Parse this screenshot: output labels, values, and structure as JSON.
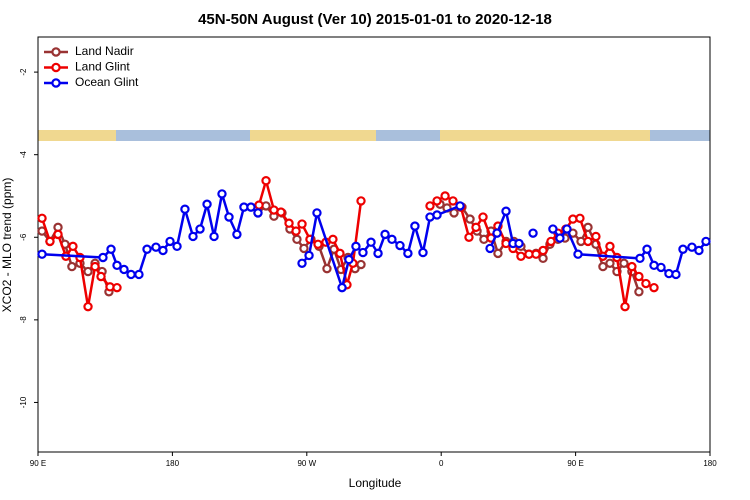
{
  "chart_data": {
    "type": "line",
    "title": "45N-50N August (Ver 10)   2015-01-01 to 2020-12-18",
    "x_label": "Longitude",
    "y_label": "XCO2 - MLO trend (ppm)",
    "xlim": [
      90,
      540
    ],
    "xticks": [
      {
        "value": 90,
        "label": "90 E"
      },
      {
        "value": 180,
        "label": "180"
      },
      {
        "value": 270,
        "label": "90 W"
      },
      {
        "value": 360,
        "label": "0"
      },
      {
        "value": 450,
        "label": "90 E"
      },
      {
        "value": 540,
        "label": "180"
      }
    ],
    "ylim": [
      -11.2,
      -1.15
    ],
    "yticks": [
      -2,
      -4,
      -6,
      -8,
      -10
    ],
    "legend": "top-left",
    "series": [
      {
        "name": "Land Nadir",
        "color": "#993333",
        "x": [
          92.7,
          98.0,
          103.4,
          108.1,
          112.7,
          118.1,
          123.5,
          128.2,
          132.9,
          137.5,
          null,
          237.3,
          242.7,
          248.0,
          253.4,
          258.7,
          263.4,
          268.1,
          272.8,
          278.2,
          283.5,
          288.2,
          292.9,
          297.6,
          302.3,
          306.3,
          null,
          359.2,
          363.9,
          368.6,
          373.9,
          379.3,
          384.0,
          388.6,
          393.4,
          398.0,
          403.4,
          408.7,
          413.4,
          418.8,
          423.5,
          428.2,
          432.8,
          438.2,
          442.9,
          448.2,
          453.6,
          458.3,
          463.6,
          468.3,
          473.0,
          477.7,
          482.4,
          487.7,
          492.4
        ],
        "values": [
          -5.85,
          -6.1,
          -5.76,
          -6.17,
          -6.71,
          -6.63,
          -6.83,
          -6.63,
          -6.83,
          -7.32,
          null,
          -5.41,
          -5.24,
          -5.49,
          -5.41,
          -5.8,
          -6.05,
          -6.27,
          -6.05,
          -6.22,
          -6.76,
          -6.29,
          -6.78,
          -6.49,
          -6.76,
          -6.66,
          null,
          -5.2,
          -5.29,
          -5.41,
          -5.27,
          -5.56,
          -5.85,
          -6.05,
          -5.85,
          -6.39,
          -6.1,
          -6.1,
          -6.22,
          -6.41,
          -6.39,
          -6.51,
          -6.17,
          -6.05,
          -6.02,
          -5.9,
          -6.1,
          -5.76,
          -6.17,
          -6.71,
          -6.63,
          -6.83,
          -6.63,
          -6.83,
          -7.32
        ]
      },
      {
        "name": "Land Glint",
        "color": "#ee0000",
        "x": [
          92.7,
          98.0,
          103.4,
          108.7,
          113.4,
          118.1,
          123.5,
          128.2,
          132.2,
          138.2,
          142.9,
          null,
          238.0,
          242.7,
          248.0,
          252.7,
          258.1,
          262.8,
          266.8,
          272.1,
          277.5,
          282.8,
          287.5,
          292.2,
          296.9,
          300.9,
          306.3,
          null,
          352.5,
          357.2,
          362.6,
          367.9,
          373.2,
          378.6,
          383.3,
          388.0,
          393.4,
          398.0,
          403.4,
          408.1,
          413.4,
          418.8,
          423.5,
          428.2,
          433.5,
          438.2,
          443.5,
          448.2,
          452.9,
          458.3,
          463.6,
          468.3,
          473.0,
          477.7,
          483.1,
          487.7,
          492.4,
          497.1,
          502.5
        ],
        "values": [
          -5.54,
          -6.1,
          -5.93,
          -6.46,
          -6.22,
          -6.49,
          -7.68,
          -6.71,
          -6.95,
          -7.2,
          -7.22,
          null,
          -5.22,
          -4.63,
          -5.34,
          -5.39,
          -5.66,
          -5.85,
          -5.68,
          -6.05,
          -6.17,
          -6.12,
          -6.05,
          -6.39,
          -7.15,
          -6.63,
          -5.12,
          null,
          -5.24,
          -5.12,
          -5.0,
          -5.12,
          -5.27,
          -6.0,
          -5.76,
          -5.51,
          -6.02,
          -5.73,
          -6.15,
          -6.27,
          -6.46,
          -6.41,
          -6.41,
          -6.32,
          -6.1,
          -5.9,
          -5.8,
          -5.56,
          -5.54,
          -6.1,
          -5.98,
          -6.46,
          -6.22,
          -6.49,
          -7.68,
          -6.71,
          -6.95,
          -7.12,
          -7.22
        ]
      },
      {
        "name": "Ocean Glint",
        "color": "#0000ee",
        "x": [
          92.7,
          133.5,
          138.9,
          142.9,
          147.6,
          152.3,
          157.6,
          163.0,
          169.0,
          173.7,
          178.4,
          183.1,
          188.4,
          193.8,
          198.5,
          203.2,
          207.9,
          213.2,
          217.9,
          223.2,
          227.9,
          232.6,
          237.3,
          null,
          266.8,
          271.5,
          276.8,
          293.6,
          298.2,
          302.9,
          307.6,
          313.0,
          317.7,
          322.4,
          327.0,
          332.4,
          337.7,
          342.4,
          347.8,
          352.5,
          357.2,
          372.6,
          null,
          392.7,
          397.4,
          403.4,
          408.1,
          412.1,
          null,
          421.5,
          null,
          434.8,
          439.5,
          444.2,
          451.6,
          493.1,
          497.8,
          502.5,
          507.2,
          512.5,
          517.2,
          521.9,
          527.9,
          532.6,
          537.3
        ],
        "values": [
          -6.41,
          -6.49,
          -6.29,
          -6.68,
          -6.78,
          -6.9,
          -6.9,
          -6.29,
          -6.24,
          -6.32,
          -6.1,
          -6.22,
          -5.32,
          -5.98,
          -5.8,
          -5.2,
          -5.98,
          -4.95,
          -5.51,
          -5.93,
          -5.27,
          -5.27,
          -5.41,
          null,
          -6.63,
          -6.44,
          -5.41,
          -7.22,
          -6.54,
          -6.22,
          -6.37,
          -6.12,
          -6.39,
          -5.93,
          -6.05,
          -6.2,
          -6.39,
          -5.73,
          -6.37,
          -5.51,
          -5.46,
          -5.24,
          null,
          -6.27,
          -5.9,
          -5.37,
          -6.15,
          -6.15,
          null,
          -5.9,
          null,
          -5.8,
          -6.02,
          -5.8,
          -6.41,
          -6.51,
          -6.29,
          -6.68,
          -6.73,
          -6.88,
          -6.9,
          -6.29,
          -6.24,
          -6.32,
          -6.1
        ]
      }
    ]
  }
}
